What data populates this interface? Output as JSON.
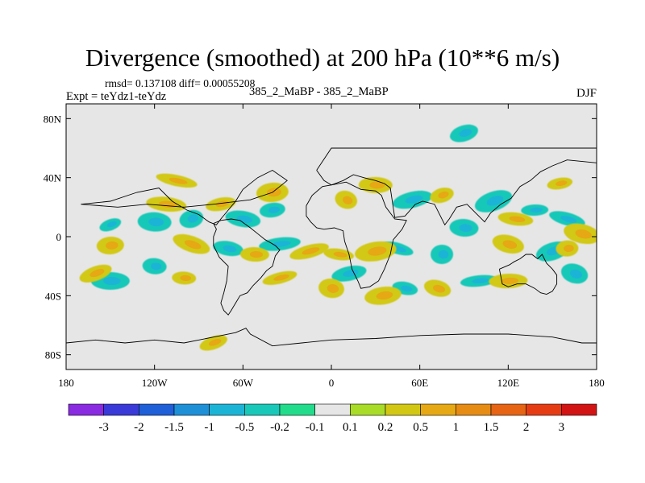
{
  "chart_data": {
    "type": "heatmap",
    "title": "Divergence (smoothed) at 200 hPa (10**6 m/s)",
    "stats_label": "rmsd= 0.137108  diff= 0.00055208",
    "experiment_label": "Expt = teYdz1-teYdz",
    "runs_label": "385_2_MaBP - 385_2_MaBP",
    "season": "DJF",
    "rmsd": 0.137108,
    "diff": 0.00055208,
    "x_range": [
      -180,
      180
    ],
    "y_range": [
      -90,
      90
    ],
    "x_ticks": [
      {
        "value": -180,
        "label": "180"
      },
      {
        "value": -120,
        "label": "120W"
      },
      {
        "value": -60,
        "label": "60W"
      },
      {
        "value": 0,
        "label": "0"
      },
      {
        "value": 60,
        "label": "60E"
      },
      {
        "value": 120,
        "label": "120E"
      },
      {
        "value": 180,
        "label": "180"
      }
    ],
    "y_ticks": [
      {
        "value": 80,
        "label": "80N"
      },
      {
        "value": 40,
        "label": "40N"
      },
      {
        "value": 0,
        "label": "0"
      },
      {
        "value": -40,
        "label": "40S"
      },
      {
        "value": -80,
        "label": "80S"
      }
    ],
    "contour_levels": [
      -3,
      -2,
      -1.5,
      -1,
      -0.5,
      -0.2,
      -0.1,
      0.1,
      0.2,
      0.5,
      1,
      1.5,
      2,
      3
    ],
    "colorbar_colors": [
      "#8a2be2",
      "#3a3ad8",
      "#1f5fd8",
      "#1e90d8",
      "#1cb4d6",
      "#19c8b8",
      "#22dc8c",
      "#e6e6e6",
      "#a8dc28",
      "#d2c814",
      "#e6a814",
      "#e68c14",
      "#e66414",
      "#e63c14",
      "#d21414"
    ],
    "anomalies": [
      {
        "lon": -150,
        "lat": 8,
        "value": -0.3
      },
      {
        "lon": -120,
        "lat": 10,
        "value": -0.3
      },
      {
        "lon": -95,
        "lat": 12,
        "value": -0.3
      },
      {
        "lon": -60,
        "lat": 12,
        "value": -0.3
      },
      {
        "lon": -40,
        "lat": 18,
        "value": -0.3
      },
      {
        "lon": 160,
        "lat": 12,
        "value": -0.3
      },
      {
        "lon": 138,
        "lat": 18,
        "value": -0.3
      },
      {
        "lon": 110,
        "lat": 24,
        "value": -0.3
      },
      {
        "lon": 90,
        "lat": 6,
        "value": -0.3
      },
      {
        "lon": 55,
        "lat": 25,
        "value": -0.3
      },
      {
        "lon": -70,
        "lat": -8,
        "value": -0.3
      },
      {
        "lon": -35,
        "lat": -5,
        "value": -0.3
      },
      {
        "lon": 45,
        "lat": -8,
        "value": -0.3
      },
      {
        "lon": 75,
        "lat": -12,
        "value": -0.3
      },
      {
        "lon": 150,
        "lat": -10,
        "value": -0.3
      },
      {
        "lon": -120,
        "lat": -20,
        "value": -0.3
      },
      {
        "lon": 12,
        "lat": -25,
        "value": -0.3
      },
      {
        "lon": 50,
        "lat": -35,
        "value": -0.3
      },
      {
        "lon": 100,
        "lat": -30,
        "value": -0.3
      },
      {
        "lon": 165,
        "lat": -25,
        "value": -0.3
      },
      {
        "lon": -150,
        "lat": -30,
        "value": -0.3
      },
      {
        "lon": 90,
        "lat": 70,
        "value": -0.3
      },
      {
        "lon": -112,
        "lat": 22,
        "value": 0.3
      },
      {
        "lon": -75,
        "lat": 22,
        "value": 0.3
      },
      {
        "lon": -105,
        "lat": 38,
        "value": 0.3
      },
      {
        "lon": -40,
        "lat": 30,
        "value": 0.3
      },
      {
        "lon": 10,
        "lat": 25,
        "value": 0.3
      },
      {
        "lon": 30,
        "lat": 35,
        "value": 0.3
      },
      {
        "lon": 75,
        "lat": 28,
        "value": 0.3
      },
      {
        "lon": 125,
        "lat": 12,
        "value": 0.3
      },
      {
        "lon": 155,
        "lat": 36,
        "value": 0.3
      },
      {
        "lon": 170,
        "lat": 2,
        "value": 0.3
      },
      {
        "lon": -150,
        "lat": -6,
        "value": 0.3
      },
      {
        "lon": -95,
        "lat": -5,
        "value": 0.3
      },
      {
        "lon": -52,
        "lat": -12,
        "value": 0.3
      },
      {
        "lon": -15,
        "lat": -10,
        "value": 0.3
      },
      {
        "lon": 5,
        "lat": -12,
        "value": 0.3
      },
      {
        "lon": 30,
        "lat": -10,
        "value": 0.3
      },
      {
        "lon": 120,
        "lat": -5,
        "value": 0.3
      },
      {
        "lon": 160,
        "lat": -8,
        "value": 0.3
      },
      {
        "lon": -160,
        "lat": -25,
        "value": 0.3
      },
      {
        "lon": -100,
        "lat": -28,
        "value": 0.3
      },
      {
        "lon": -35,
        "lat": -28,
        "value": 0.3
      },
      {
        "lon": 0,
        "lat": -35,
        "value": 0.3
      },
      {
        "lon": 35,
        "lat": -40,
        "value": 0.3
      },
      {
        "lon": 72,
        "lat": -35,
        "value": 0.3
      },
      {
        "lon": 120,
        "lat": -30,
        "value": 0.3
      },
      {
        "lon": -80,
        "lat": -72,
        "value": 0.3
      }
    ],
    "land_outlines": [
      {
        "name": "north-america",
        "coords": [
          [
            -170,
            22
          ],
          [
            -150,
            24
          ],
          [
            -132,
            30
          ],
          [
            -117,
            33
          ],
          [
            -108,
            24
          ],
          [
            -98,
            18
          ],
          [
            -90,
            15
          ],
          [
            -83,
            10
          ],
          [
            -78,
            8
          ],
          [
            -75,
            12
          ],
          [
            -70,
            18
          ],
          [
            -65,
            24
          ],
          [
            -60,
            32
          ],
          [
            -50,
            40
          ],
          [
            -40,
            45
          ],
          [
            -30,
            38
          ],
          [
            -40,
            30
          ],
          [
            -55,
            25
          ],
          [
            -80,
            22
          ],
          [
            -100,
            20
          ],
          [
            -125,
            22
          ],
          [
            -145,
            20
          ],
          [
            -170,
            22
          ]
        ]
      },
      {
        "name": "eurasia",
        "coords": [
          [
            -10,
            45
          ],
          [
            -5,
            38
          ],
          [
            0,
            35
          ],
          [
            8,
            38
          ],
          [
            15,
            42
          ],
          [
            22,
            40
          ],
          [
            30,
            38
          ],
          [
            36,
            36
          ],
          [
            40,
            33
          ],
          [
            43,
            13
          ],
          [
            50,
            14
          ],
          [
            57,
            22
          ],
          [
            62,
            24
          ],
          [
            70,
            22
          ],
          [
            73,
            16
          ],
          [
            77,
            8
          ],
          [
            80,
            12
          ],
          [
            85,
            20
          ],
          [
            92,
            22
          ],
          [
            98,
            16
          ],
          [
            104,
            10
          ],
          [
            108,
            16
          ],
          [
            115,
            22
          ],
          [
            122,
            26
          ],
          [
            128,
            34
          ],
          [
            135,
            38
          ],
          [
            142,
            44
          ],
          [
            150,
            48
          ],
          [
            160,
            52
          ],
          [
            180,
            50
          ],
          [
            180,
            60
          ],
          [
            150,
            60
          ],
          [
            120,
            60
          ],
          [
            90,
            60
          ],
          [
            60,
            60
          ],
          [
            30,
            60
          ],
          [
            0,
            60
          ],
          [
            -10,
            45
          ]
        ]
      },
      {
        "name": "africa",
        "coords": [
          [
            -17,
            21
          ],
          [
            -13,
            28
          ],
          [
            -6,
            34
          ],
          [
            0,
            35
          ],
          [
            10,
            37
          ],
          [
            20,
            32
          ],
          [
            30,
            31
          ],
          [
            34,
            28
          ],
          [
            37,
            20
          ],
          [
            43,
            12
          ],
          [
            51,
            11
          ],
          [
            48,
            5
          ],
          [
            42,
            -2
          ],
          [
            40,
            -12
          ],
          [
            36,
            -22
          ],
          [
            32,
            -30
          ],
          [
            26,
            -34
          ],
          [
            20,
            -35
          ],
          [
            18,
            -30
          ],
          [
            14,
            -22
          ],
          [
            12,
            -12
          ],
          [
            9,
            -3
          ],
          [
            8,
            4
          ],
          [
            2,
            6
          ],
          [
            -5,
            5
          ],
          [
            -10,
            6
          ],
          [
            -14,
            10
          ],
          [
            -17,
            14
          ],
          [
            -17,
            21
          ]
        ]
      },
      {
        "name": "south-america",
        "coords": [
          [
            -80,
            9
          ],
          [
            -75,
            11
          ],
          [
            -68,
            12
          ],
          [
            -62,
            11
          ],
          [
            -55,
            6
          ],
          [
            -50,
            2
          ],
          [
            -45,
            -2
          ],
          [
            -38,
            -6
          ],
          [
            -35,
            -9
          ],
          [
            -38,
            -13
          ],
          [
            -40,
            -20
          ],
          [
            -44,
            -23
          ],
          [
            -48,
            -28
          ],
          [
            -53,
            -33
          ],
          [
            -57,
            -38
          ],
          [
            -62,
            -40
          ],
          [
            -65,
            -45
          ],
          [
            -68,
            -50
          ],
          [
            -70,
            -53
          ],
          [
            -73,
            -50
          ],
          [
            -75,
            -45
          ],
          [
            -73,
            -38
          ],
          [
            -71,
            -30
          ],
          [
            -70,
            -20
          ],
          [
            -76,
            -14
          ],
          [
            -80,
            -6
          ],
          [
            -80,
            0
          ],
          [
            -78,
            5
          ],
          [
            -80,
            9
          ]
        ]
      },
      {
        "name": "australia",
        "coords": [
          [
            114,
            -22
          ],
          [
            116,
            -32
          ],
          [
            120,
            -34
          ],
          [
            126,
            -32
          ],
          [
            132,
            -32
          ],
          [
            138,
            -35
          ],
          [
            142,
            -38
          ],
          [
            146,
            -39
          ],
          [
            150,
            -37
          ],
          [
            153,
            -32
          ],
          [
            153,
            -26
          ],
          [
            150,
            -22
          ],
          [
            146,
            -18
          ],
          [
            143,
            -12
          ],
          [
            140,
            -15
          ],
          [
            136,
            -12
          ],
          [
            132,
            -12
          ],
          [
            128,
            -15
          ],
          [
            124,
            -17
          ],
          [
            121,
            -19
          ],
          [
            114,
            -22
          ]
        ]
      },
      {
        "name": "antarctica",
        "coords": [
          [
            -180,
            -72
          ],
          [
            -160,
            -70
          ],
          [
            -140,
            -72
          ],
          [
            -120,
            -70
          ],
          [
            -100,
            -72
          ],
          [
            -80,
            -68
          ],
          [
            -65,
            -65
          ],
          [
            -58,
            -62
          ],
          [
            -55,
            -66
          ],
          [
            -40,
            -74
          ],
          [
            -20,
            -72
          ],
          [
            0,
            -70
          ],
          [
            30,
            -69
          ],
          [
            60,
            -67
          ],
          [
            90,
            -66
          ],
          [
            120,
            -66
          ],
          [
            150,
            -68
          ],
          [
            170,
            -72
          ],
          [
            180,
            -72
          ],
          [
            180,
            -90
          ],
          [
            -180,
            -90
          ],
          [
            -180,
            -72
          ]
        ]
      }
    ]
  }
}
